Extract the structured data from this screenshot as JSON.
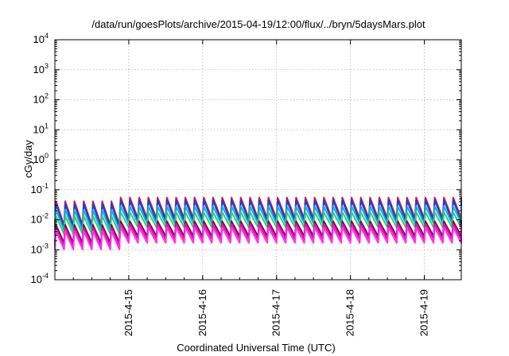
{
  "chart_data": {
    "type": "line",
    "title": "/data/run/goesPlots/archive/2015-04-19/12:00/flux/../bryn/5daysMars.plot",
    "xlabel": "Coordinated Universal Time (UTC)",
    "ylabel": "cGy/day",
    "yscale": "log",
    "ylim": [
      0.0001,
      10000
    ],
    "xlim": [
      "2015-04-14T00:00",
      "2015-04-19T12:00"
    ],
    "grid": true,
    "legend": "none",
    "y_ticks": [
      {
        "base": "10",
        "exp": "-4"
      },
      {
        "base": "10",
        "exp": "-3"
      },
      {
        "base": "10",
        "exp": "-2"
      },
      {
        "base": "10",
        "exp": "-1"
      },
      {
        "base": "10",
        "exp": "0"
      },
      {
        "base": "10",
        "exp": "1"
      },
      {
        "base": "10",
        "exp": "2"
      },
      {
        "base": "10",
        "exp": "3"
      },
      {
        "base": "10",
        "exp": "4"
      }
    ],
    "x_ticks": [
      {
        "label": "2015-4-15",
        "date": "2015-04-15T00:00"
      },
      {
        "label": "2015-4-16",
        "date": "2015-04-16T00:00"
      },
      {
        "label": "2015-4-17",
        "date": "2015-04-17T00:00"
      },
      {
        "label": "2015-4-18",
        "date": "2015-04-18T00:00"
      },
      {
        "label": "2015-4-19",
        "date": "2015-04-19T00:00"
      }
    ],
    "sawtooth_period_hours": 3,
    "series": [
      {
        "color": "#e8102a",
        "peak": 0.055,
        "trough": 0.011
      },
      {
        "color": "#1a3fd6",
        "peak": 0.045,
        "trough": 0.009
      },
      {
        "color": "#00b4e6",
        "peak": 0.028,
        "trough": 0.0075
      },
      {
        "color": "#2ed17a",
        "peak": 0.018,
        "trough": 0.0055
      },
      {
        "color": "#8a1030",
        "peak": 0.009,
        "trough": 0.0028
      },
      {
        "color": "#e010c8",
        "peak": 0.007,
        "trough": 0.0022
      },
      {
        "color": "#ff33ee",
        "peak": 0.0055,
        "trough": 0.0017
      }
    ]
  }
}
